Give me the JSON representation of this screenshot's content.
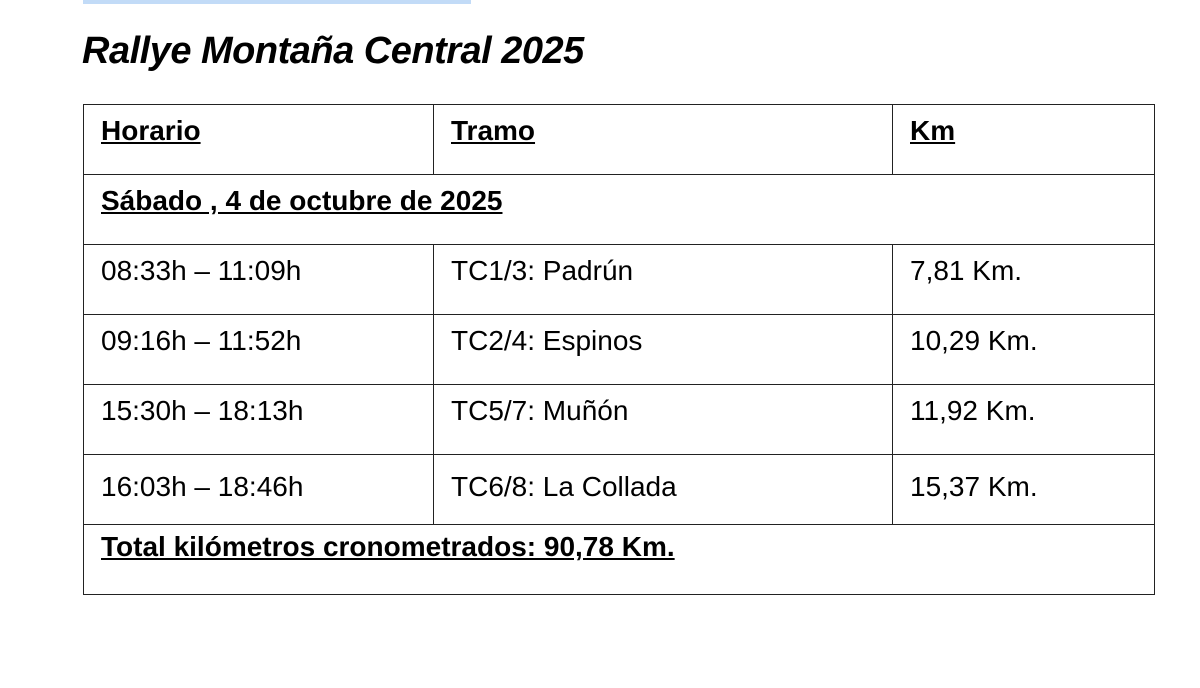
{
  "title": "Rallye Montaña Central 2025",
  "table": {
    "headers": [
      "Horario",
      "Tramo",
      "Km"
    ],
    "day": "Sábado , 4 de octubre de 2025",
    "rows": [
      {
        "time": "08:33h – 11:09h",
        "stage": "TC1/3: Padrún",
        "km": "7,81 Km."
      },
      {
        "time": "09:16h – 11:52h",
        "stage": "TC2/4: Espinos",
        "km": "10,29 Km."
      },
      {
        "time": "15:30h – 18:13h",
        "stage": "TC5/7: Muñón",
        "km": "11,92 Km."
      },
      {
        "time": "16:03h – 18:46h",
        "stage": "TC6/8: La Collada",
        "km": "15,37 Km."
      }
    ],
    "total": "Total kilómetros cronometrados: 90,78 Km."
  },
  "colors": {
    "selection": "#c2dbf7"
  }
}
